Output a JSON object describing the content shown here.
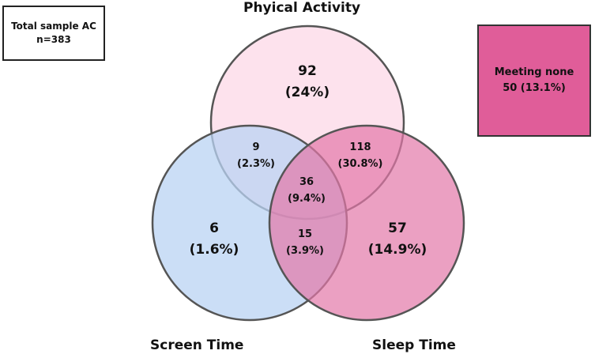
{
  "total_box": {
    "line1": "Total sample AC",
    "line2": "n=383"
  },
  "none_box": {
    "line1": "Meeting none",
    "line2": "50 (13.1%)",
    "color": "#e05d99"
  },
  "sets": {
    "physical_activity": {
      "label": "Phyical Activity",
      "color": "#fde0ec"
    },
    "screen_time": {
      "label": "Screen Time",
      "color": "#c2d9f5"
    },
    "sleep_time": {
      "label": "Sleep Time",
      "color": "#e893b9"
    }
  },
  "regions": {
    "pa_only": {
      "n": "92",
      "pct": "(24%)"
    },
    "screen_only": {
      "n": "6",
      "pct": "(1.6%)"
    },
    "sleep_only": {
      "n": "57",
      "pct": "(14.9%)"
    },
    "pa_screen": {
      "n": "9",
      "pct": "(2.3%)"
    },
    "pa_sleep": {
      "n": "118",
      "pct": "(30.8%)"
    },
    "screen_sleep": {
      "n": "15",
      "pct": "(3.9%)"
    },
    "all_three": {
      "n": "36",
      "pct": "(9.4%)"
    }
  }
}
